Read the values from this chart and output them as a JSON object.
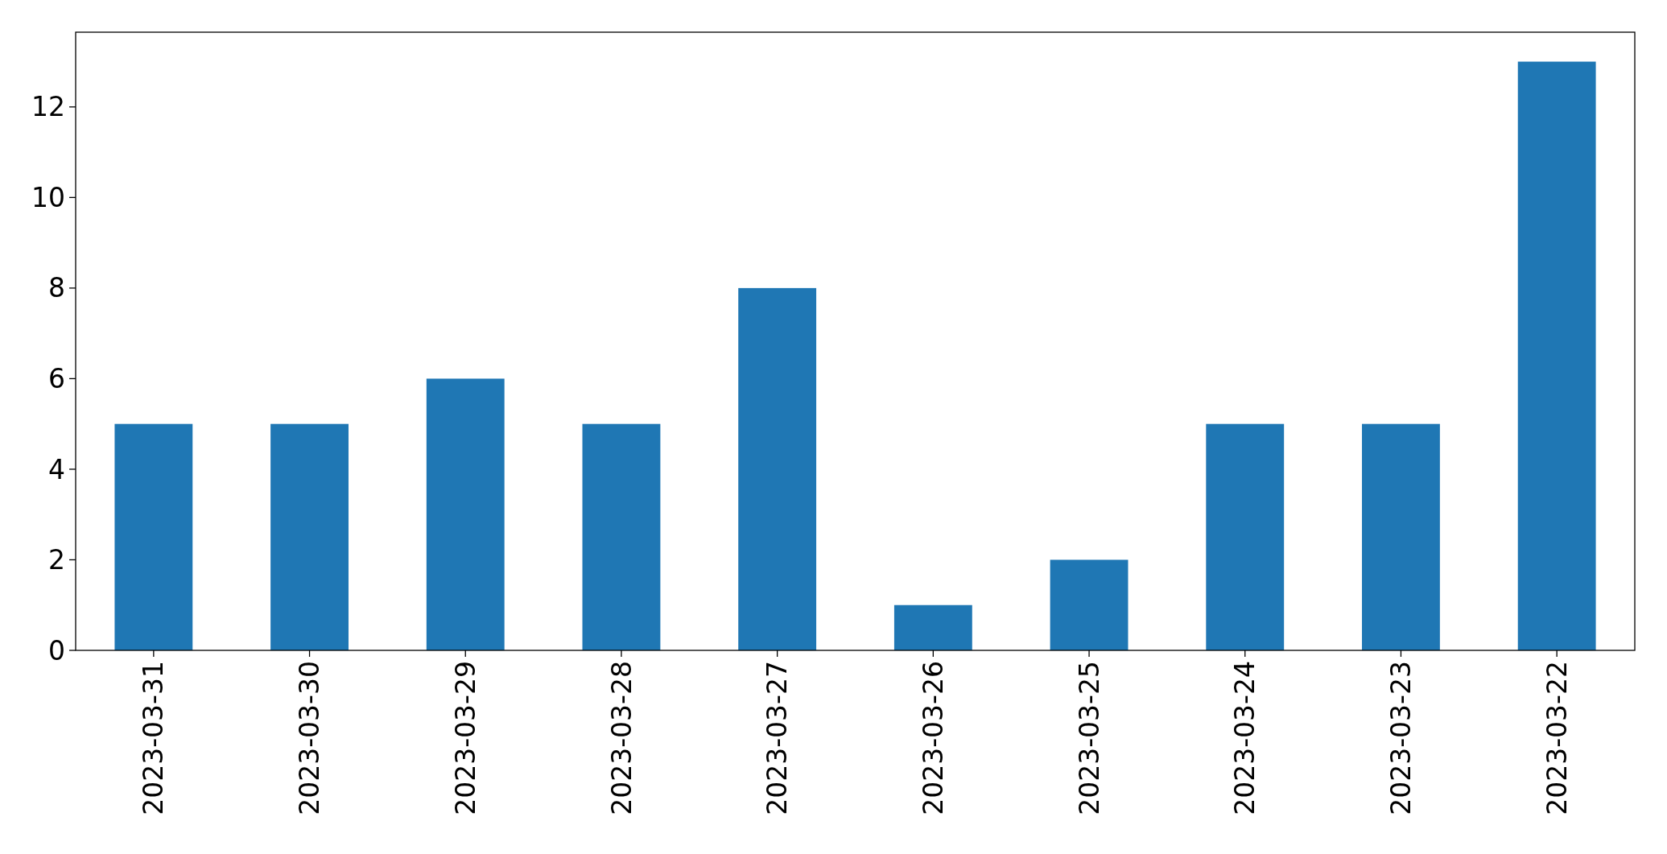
{
  "chart_data": {
    "type": "bar",
    "categories": [
      "2023-03-31",
      "2023-03-30",
      "2023-03-29",
      "2023-03-28",
      "2023-03-27",
      "2023-03-26",
      "2023-03-25",
      "2023-03-24",
      "2023-03-23",
      "2023-03-22"
    ],
    "values": [
      5,
      5,
      6,
      5,
      8,
      1,
      2,
      5,
      5,
      13
    ],
    "color": "#1f77b4",
    "ylim": [
      0,
      13.65
    ],
    "yticks": [
      0,
      2,
      4,
      6,
      8,
      10,
      12
    ],
    "grid": false
  }
}
